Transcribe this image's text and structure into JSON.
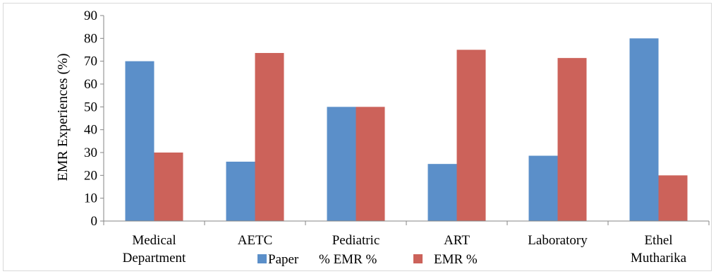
{
  "chart_data": {
    "type": "bar",
    "title": "",
    "xlabel": "",
    "ylabel": "EMR Experiences (%)",
    "ylim": [
      0,
      90
    ],
    "yticks": [
      0,
      10,
      20,
      30,
      40,
      50,
      60,
      70,
      80,
      90
    ],
    "grid": false,
    "legend_position": "bottom",
    "categories": [
      [
        "Medical",
        "Department"
      ],
      [
        "AETC"
      ],
      [
        "Pediatric"
      ],
      [
        "ART"
      ],
      [
        "Laboratory"
      ],
      [
        "Ethel",
        "Mutharika"
      ]
    ],
    "series": [
      {
        "name": "Paper  % EMR %",
        "legend_label": "Paper",
        "color": "#5b8fc9",
        "values": [
          70,
          26,
          50,
          25,
          28.6,
          80
        ]
      },
      {
        "name": "EMR %",
        "legend_label": "EMR %",
        "color": "#cc625a",
        "values": [
          30,
          73.6,
          50,
          75,
          71.4,
          20
        ]
      }
    ],
    "legend_extra_text": "%  EMR %"
  }
}
